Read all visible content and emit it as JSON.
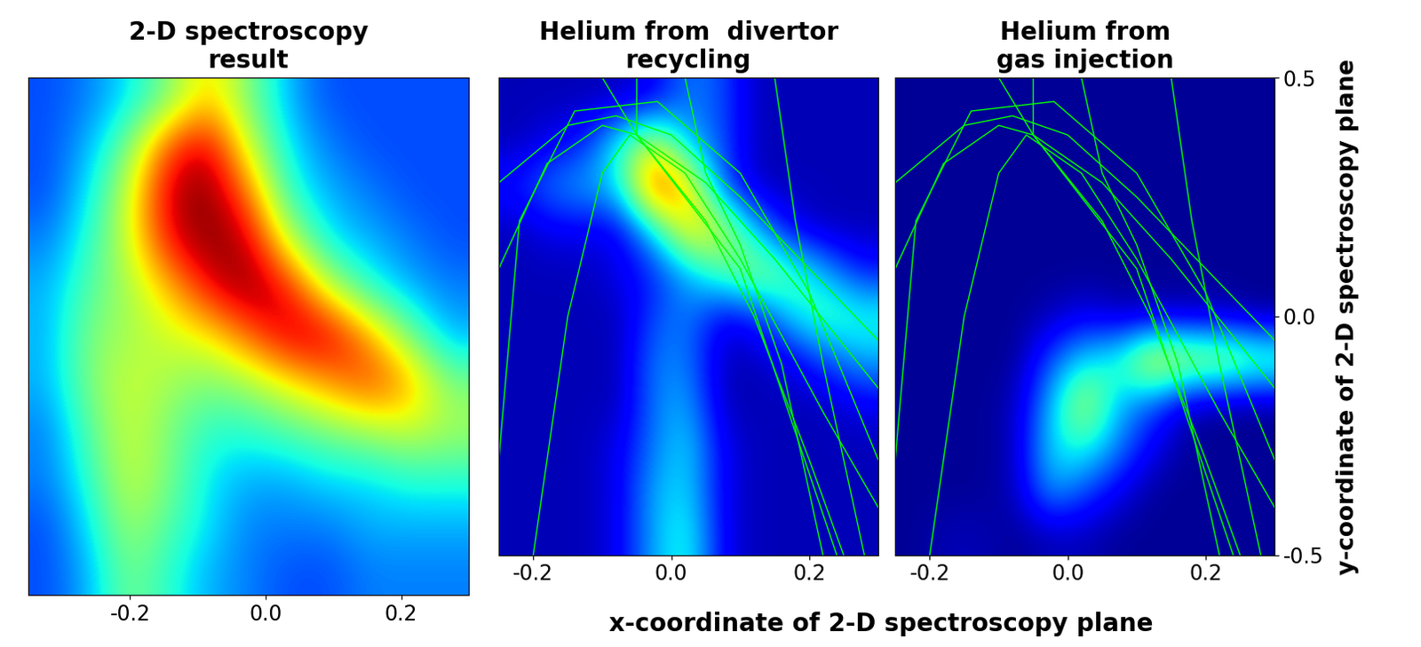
{
  "chart_data": [
    {
      "type": "heatmap",
      "title": "2-D spectroscopy\nresult",
      "xlim": [
        -0.35,
        0.3
      ],
      "xticks": [
        -0.2,
        0.0,
        0.2
      ],
      "ylim": [
        -0.5,
        0.5
      ],
      "tick_labels": "x",
      "value_range": [
        0,
        1
      ],
      "cells": [
        [
          0.2,
          0.25,
          0.35,
          0.5,
          0.7,
          0.5,
          0.3,
          0.2,
          0.2,
          0.2,
          0.2
        ],
        [
          0.2,
          0.3,
          0.5,
          0.85,
          0.95,
          0.6,
          0.35,
          0.25,
          0.2,
          0.2,
          0.2
        ],
        [
          0.2,
          0.35,
          0.6,
          0.95,
          1.0,
          0.8,
          0.4,
          0.3,
          0.25,
          0.2,
          0.2
        ],
        [
          0.25,
          0.4,
          0.6,
          0.9,
          1.0,
          0.95,
          0.6,
          0.35,
          0.3,
          0.25,
          0.2
        ],
        [
          0.3,
          0.45,
          0.55,
          0.7,
          0.9,
          1.0,
          0.9,
          0.6,
          0.4,
          0.3,
          0.25
        ],
        [
          0.3,
          0.5,
          0.55,
          0.6,
          0.65,
          0.8,
          0.95,
          0.95,
          0.75,
          0.5,
          0.3
        ],
        [
          0.3,
          0.5,
          0.6,
          0.55,
          0.5,
          0.55,
          0.65,
          0.75,
          0.85,
          0.75,
          0.5
        ],
        [
          0.25,
          0.45,
          0.6,
          0.5,
          0.4,
          0.4,
          0.45,
          0.5,
          0.55,
          0.6,
          0.55
        ],
        [
          0.25,
          0.4,
          0.6,
          0.5,
          0.35,
          0.3,
          0.3,
          0.35,
          0.35,
          0.4,
          0.4
        ],
        [
          0.2,
          0.35,
          0.55,
          0.45,
          0.35,
          0.25,
          0.25,
          0.25,
          0.3,
          0.3,
          0.3
        ],
        [
          0.2,
          0.3,
          0.5,
          0.4,
          0.3,
          0.25,
          0.2,
          0.2,
          0.25,
          0.25,
          0.25
        ]
      ]
    },
    {
      "type": "heatmap",
      "title": "Helium from  divertor\nrecycling",
      "xlim": [
        -0.25,
        0.3
      ],
      "xticks": [
        -0.2,
        0.0,
        0.2
      ],
      "ylim": [
        -0.5,
        0.5
      ],
      "tick_labels": "x",
      "value_range": [
        0,
        1
      ],
      "color": "#00ff00",
      "cells": [
        [
          0.05,
          0.05,
          0.05,
          0.05,
          0.1,
          0.25,
          0.2,
          0.05,
          0.05,
          0.05,
          0.05
        ],
        [
          0.05,
          0.1,
          0.15,
          0.4,
          0.6,
          0.3,
          0.2,
          0.05,
          0.05,
          0.05,
          0.05
        ],
        [
          0.15,
          0.25,
          0.3,
          0.35,
          0.9,
          0.7,
          0.2,
          0.05,
          0.05,
          0.05,
          0.05
        ],
        [
          0.05,
          0.1,
          0.1,
          0.1,
          0.35,
          0.7,
          0.6,
          0.3,
          0.1,
          0.05,
          0.05
        ],
        [
          0.05,
          0.05,
          0.05,
          0.1,
          0.15,
          0.3,
          0.45,
          0.55,
          0.45,
          0.3,
          0.15
        ],
        [
          0.05,
          0.05,
          0.05,
          0.05,
          0.2,
          0.25,
          0.1,
          0.15,
          0.35,
          0.45,
          0.4
        ],
        [
          0.05,
          0.05,
          0.05,
          0.05,
          0.25,
          0.25,
          0.05,
          0.05,
          0.1,
          0.2,
          0.3
        ],
        [
          0.05,
          0.05,
          0.05,
          0.05,
          0.25,
          0.3,
          0.05,
          0.05,
          0.05,
          0.05,
          0.1
        ],
        [
          0.05,
          0.05,
          0.05,
          0.1,
          0.25,
          0.35,
          0.1,
          0.05,
          0.05,
          0.05,
          0.05
        ],
        [
          0.05,
          0.05,
          0.05,
          0.1,
          0.3,
          0.35,
          0.1,
          0.05,
          0.05,
          0.05,
          0.05
        ],
        [
          0.05,
          0.05,
          0.05,
          0.1,
          0.3,
          0.4,
          0.1,
          0.05,
          0.05,
          0.05,
          0.05
        ]
      ],
      "field_lines": [
        [
          [
            -0.25,
            0.28
          ],
          [
            -0.15,
            0.4
          ],
          [
            -0.08,
            0.42
          ],
          [
            0.0,
            0.38
          ],
          [
            0.1,
            0.25
          ],
          [
            0.2,
            0.1
          ],
          [
            0.3,
            -0.05
          ]
        ],
        [
          [
            -0.25,
            0.1
          ],
          [
            -0.18,
            0.32
          ],
          [
            -0.1,
            0.4
          ],
          [
            -0.05,
            0.38
          ],
          [
            0.05,
            0.28
          ],
          [
            0.15,
            0.12
          ],
          [
            0.3,
            -0.15
          ]
        ],
        [
          [
            -0.2,
            -0.5
          ],
          [
            -0.15,
            0.0
          ],
          [
            -0.1,
            0.3
          ],
          [
            -0.06,
            0.38
          ],
          [
            0.02,
            0.3
          ],
          [
            0.1,
            0.12
          ],
          [
            0.22,
            -0.2
          ],
          [
            0.3,
            -0.4
          ]
        ],
        [
          [
            -0.05,
            0.5
          ],
          [
            -0.05,
            0.38
          ],
          [
            0.05,
            0.2
          ],
          [
            0.12,
            0.0
          ],
          [
            0.2,
            -0.3
          ],
          [
            0.25,
            -0.5
          ]
        ],
        [
          [
            0.02,
            0.5
          ],
          [
            0.05,
            0.3
          ],
          [
            0.1,
            0.15
          ],
          [
            0.16,
            -0.1
          ],
          [
            0.22,
            -0.5
          ]
        ],
        [
          [
            -0.25,
            -0.3
          ],
          [
            -0.22,
            0.2
          ],
          [
            -0.14,
            0.43
          ],
          [
            -0.02,
            0.45
          ],
          [
            0.1,
            0.3
          ],
          [
            0.2,
            0.05
          ],
          [
            0.3,
            -0.3
          ]
        ],
        [
          [
            0.15,
            0.5
          ],
          [
            0.18,
            0.2
          ],
          [
            0.22,
            -0.1
          ],
          [
            0.28,
            -0.5
          ]
        ],
        [
          [
            -0.1,
            0.5
          ],
          [
            -0.05,
            0.38
          ],
          [
            0.1,
            0.1
          ],
          [
            0.17,
            -0.2
          ],
          [
            0.24,
            -0.5
          ]
        ]
      ]
    },
    {
      "type": "heatmap",
      "title": "Helium from\ngas injection",
      "xlabel": "x-coordinate of 2-D spectroscopy plane",
      "ylabel": "y-coordinate of 2-D spectroscopy plane",
      "xlim": [
        -0.25,
        0.3
      ],
      "xticks": [
        -0.2,
        0.0,
        0.2
      ],
      "ylim": [
        -0.5,
        0.5
      ],
      "yticks": [
        -0.5,
        0.0,
        0.5
      ],
      "value_range": [
        0,
        1
      ],
      "color": "#00ff00",
      "cells": [
        [
          0.02,
          0.02,
          0.02,
          0.02,
          0.02,
          0.02,
          0.02,
          0.02,
          0.02,
          0.02,
          0.02
        ],
        [
          0.02,
          0.02,
          0.02,
          0.02,
          0.02,
          0.02,
          0.02,
          0.02,
          0.02,
          0.02,
          0.02
        ],
        [
          0.02,
          0.02,
          0.02,
          0.02,
          0.02,
          0.02,
          0.02,
          0.02,
          0.02,
          0.02,
          0.02
        ],
        [
          0.02,
          0.02,
          0.02,
          0.02,
          0.02,
          0.02,
          0.02,
          0.02,
          0.02,
          0.02,
          0.02
        ],
        [
          0.02,
          0.02,
          0.02,
          0.02,
          0.02,
          0.02,
          0.02,
          0.02,
          0.02,
          0.02,
          0.02
        ],
        [
          0.02,
          0.02,
          0.02,
          0.02,
          0.05,
          0.1,
          0.05,
          0.05,
          0.05,
          0.05,
          0.02
        ],
        [
          0.02,
          0.02,
          0.02,
          0.02,
          0.2,
          0.35,
          0.4,
          0.7,
          0.6,
          0.6,
          0.5
        ],
        [
          0.02,
          0.02,
          0.02,
          0.05,
          0.3,
          0.6,
          0.3,
          0.2,
          0.05,
          0.02,
          0.02
        ],
        [
          0.02,
          0.02,
          0.02,
          0.05,
          0.35,
          0.4,
          0.25,
          0.1,
          0.02,
          0.02,
          0.02
        ],
        [
          0.02,
          0.02,
          0.02,
          0.05,
          0.3,
          0.2,
          0.1,
          0.02,
          0.02,
          0.02,
          0.02
        ],
        [
          0.02,
          0.05,
          0.05,
          0.02,
          0.05,
          0.05,
          0.02,
          0.02,
          0.02,
          0.02,
          0.02
        ]
      ],
      "field_lines": [
        [
          [
            -0.25,
            0.28
          ],
          [
            -0.15,
            0.4
          ],
          [
            -0.08,
            0.42
          ],
          [
            0.0,
            0.38
          ],
          [
            0.1,
            0.25
          ],
          [
            0.2,
            0.1
          ],
          [
            0.3,
            -0.05
          ]
        ],
        [
          [
            -0.25,
            0.1
          ],
          [
            -0.18,
            0.32
          ],
          [
            -0.1,
            0.4
          ],
          [
            -0.05,
            0.38
          ],
          [
            0.05,
            0.28
          ],
          [
            0.15,
            0.12
          ],
          [
            0.3,
            -0.15
          ]
        ],
        [
          [
            -0.2,
            -0.5
          ],
          [
            -0.15,
            0.0
          ],
          [
            -0.1,
            0.3
          ],
          [
            -0.06,
            0.38
          ],
          [
            0.02,
            0.3
          ],
          [
            0.1,
            0.12
          ],
          [
            0.22,
            -0.2
          ],
          [
            0.3,
            -0.4
          ]
        ],
        [
          [
            -0.05,
            0.5
          ],
          [
            -0.05,
            0.38
          ],
          [
            0.05,
            0.2
          ],
          [
            0.12,
            0.0
          ],
          [
            0.2,
            -0.3
          ],
          [
            0.25,
            -0.5
          ]
        ],
        [
          [
            0.02,
            0.5
          ],
          [
            0.05,
            0.3
          ],
          [
            0.1,
            0.15
          ],
          [
            0.16,
            -0.1
          ],
          [
            0.22,
            -0.5
          ]
        ],
        [
          [
            -0.25,
            -0.3
          ],
          [
            -0.22,
            0.2
          ],
          [
            -0.14,
            0.43
          ],
          [
            -0.02,
            0.45
          ],
          [
            0.1,
            0.3
          ],
          [
            0.2,
            0.05
          ],
          [
            0.3,
            -0.3
          ]
        ],
        [
          [
            0.15,
            0.5
          ],
          [
            0.18,
            0.2
          ],
          [
            0.22,
            -0.1
          ],
          [
            0.28,
            -0.5
          ]
        ],
        [
          [
            -0.1,
            0.5
          ],
          [
            -0.05,
            0.38
          ],
          [
            0.1,
            0.1
          ],
          [
            0.17,
            -0.2
          ],
          [
            0.24,
            -0.5
          ]
        ]
      ]
    }
  ]
}
